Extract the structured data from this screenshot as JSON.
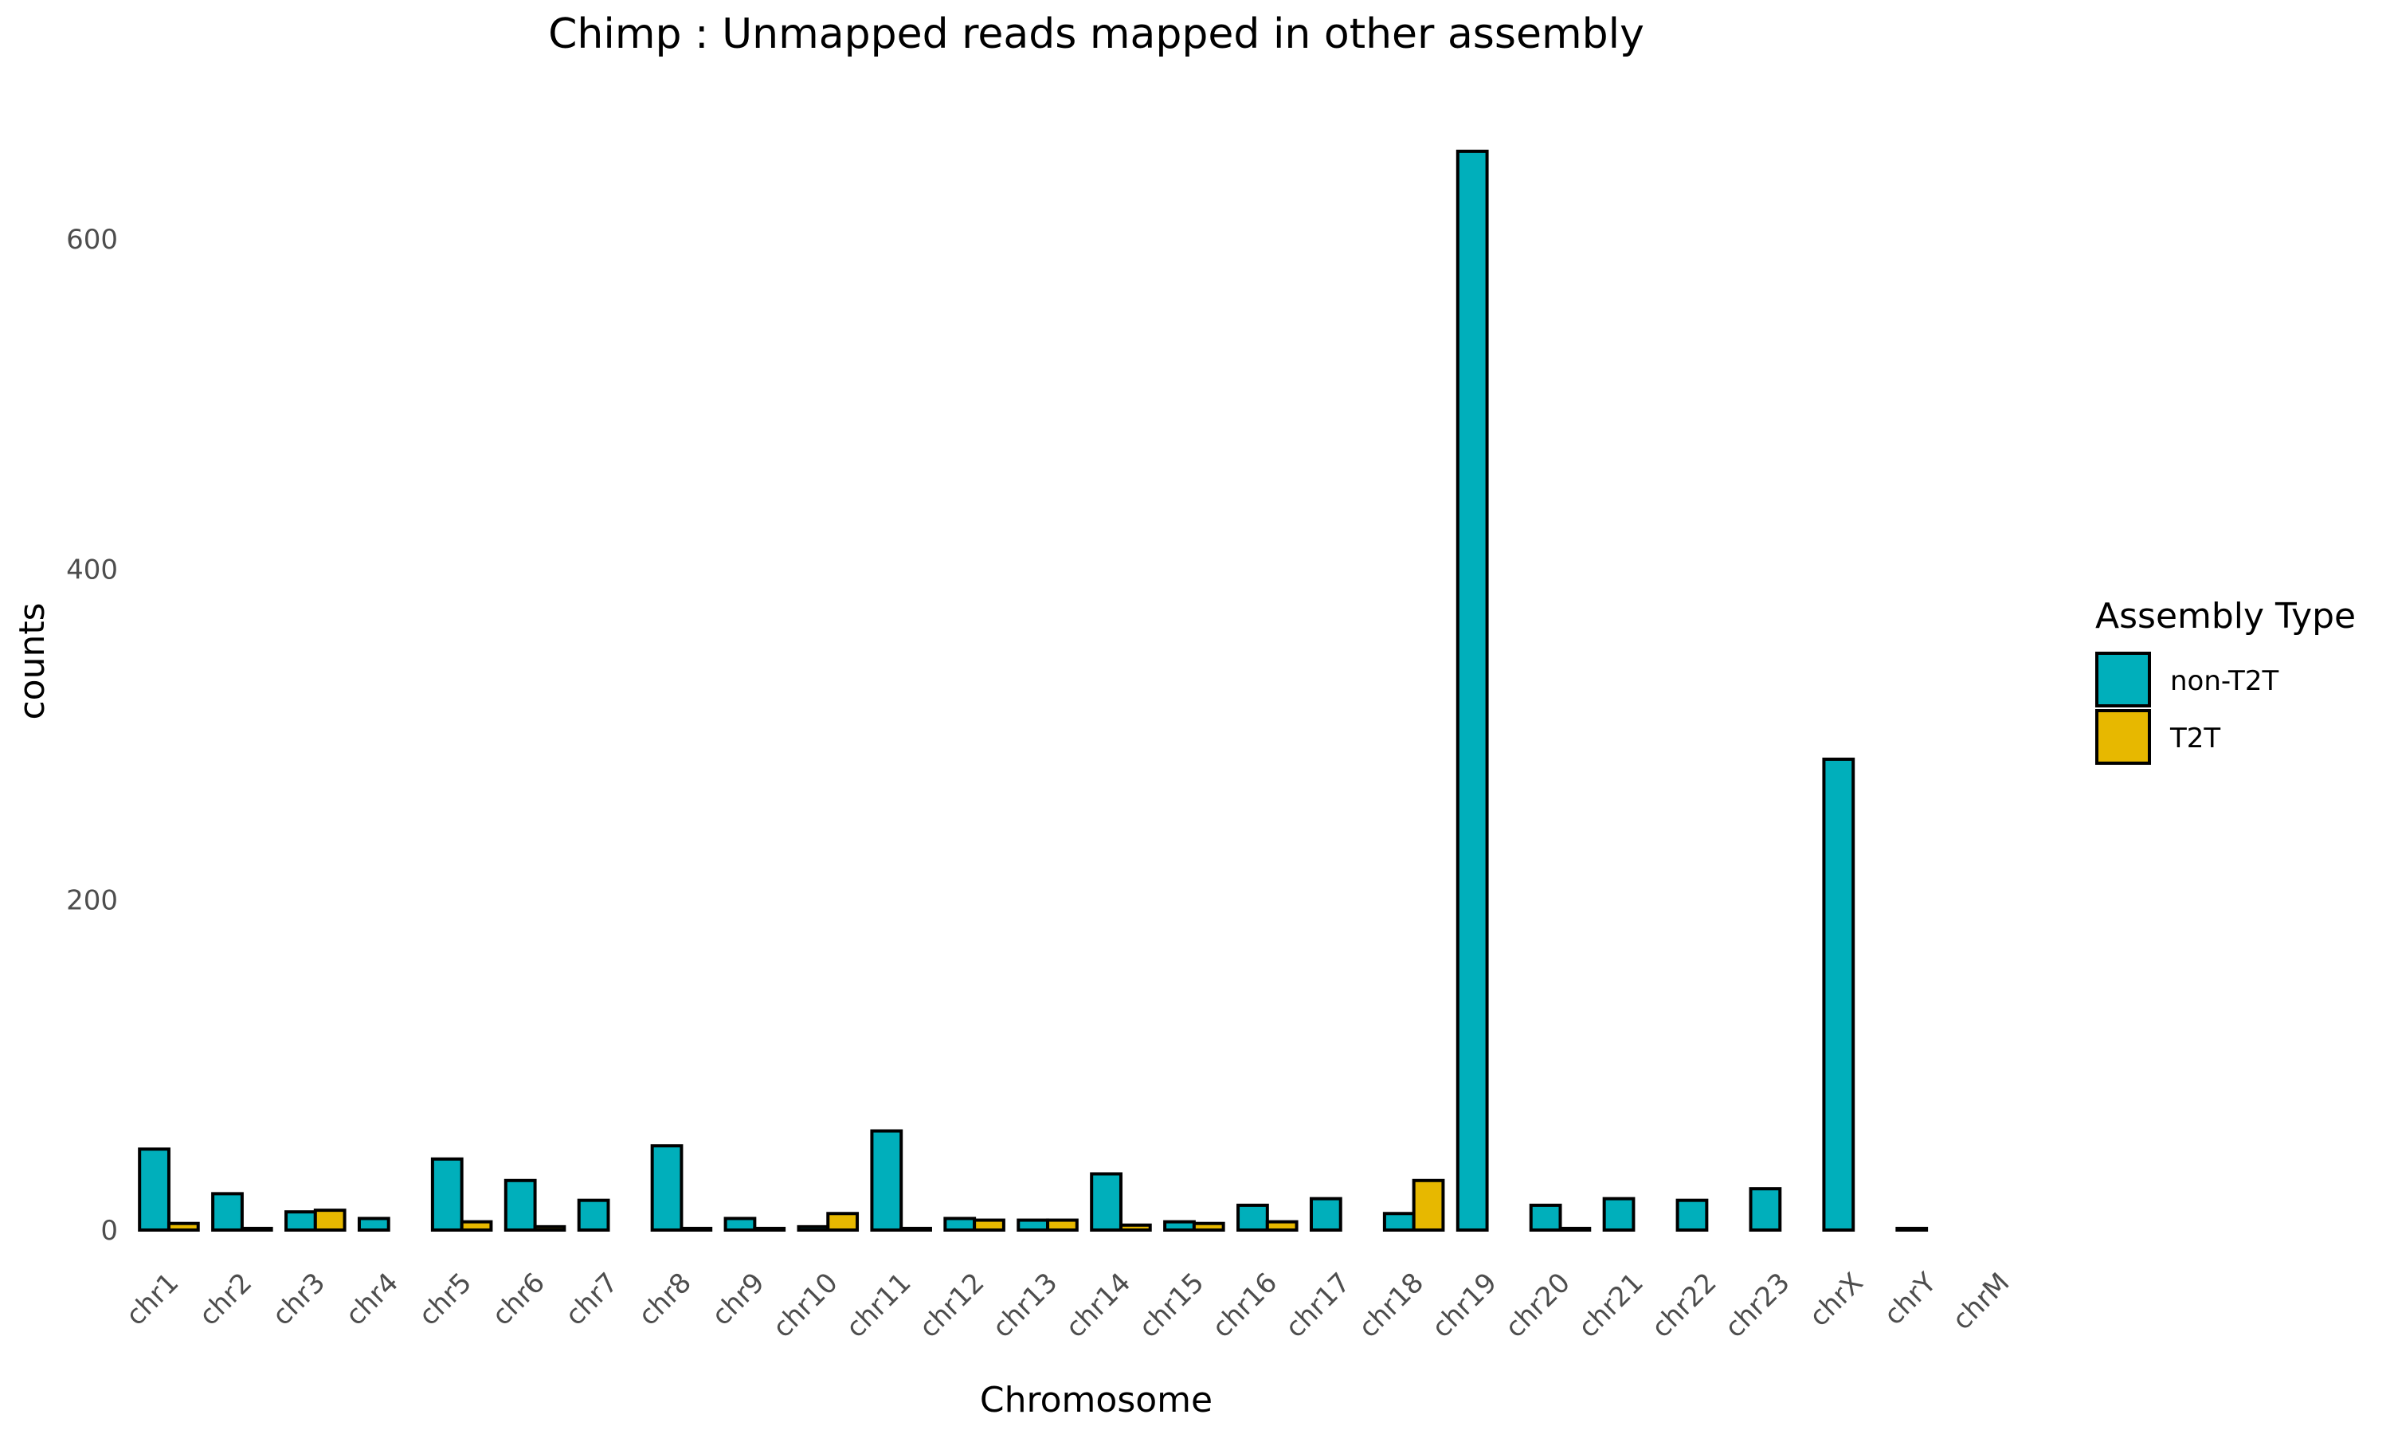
{
  "chart_data": {
    "type": "bar",
    "title": "Chimp : Unmapped reads mapped in other assembly",
    "xlabel": "Chromosome",
    "ylabel": "counts",
    "ylim": [
      0,
      665
    ],
    "yticks": [
      0,
      200,
      400,
      600
    ],
    "grid": false,
    "legend": {
      "title": "Assembly Type",
      "placement": "right"
    },
    "categories": [
      "chr1",
      "chr2",
      "chr3",
      "chr4",
      "chr5",
      "chr6",
      "chr7",
      "chr8",
      "chr9",
      "chr10",
      "chr11",
      "chr12",
      "chr13",
      "chr14",
      "chr15",
      "chr16",
      "chr17",
      "chr18",
      "chr19",
      "chr20",
      "chr21",
      "chr22",
      "chr23",
      "chrX",
      "chrY",
      "chrM"
    ],
    "series": [
      {
        "name": "non-T2T",
        "color": "#00AFBB",
        "values": [
          49,
          22,
          11,
          7,
          43,
          30,
          18,
          51,
          7,
          2,
          60,
          7,
          6,
          34,
          5,
          15,
          19,
          10,
          653,
          15,
          19,
          18,
          25,
          285,
          1,
          0
        ]
      },
      {
        "name": "T2T",
        "color": "#E7B800",
        "values": [
          4,
          1,
          12,
          0,
          5,
          2,
          0,
          1,
          1,
          10,
          1,
          6,
          6,
          3,
          4,
          5,
          0,
          30,
          0,
          1,
          0,
          0,
          0,
          0,
          0,
          0
        ]
      }
    ]
  }
}
